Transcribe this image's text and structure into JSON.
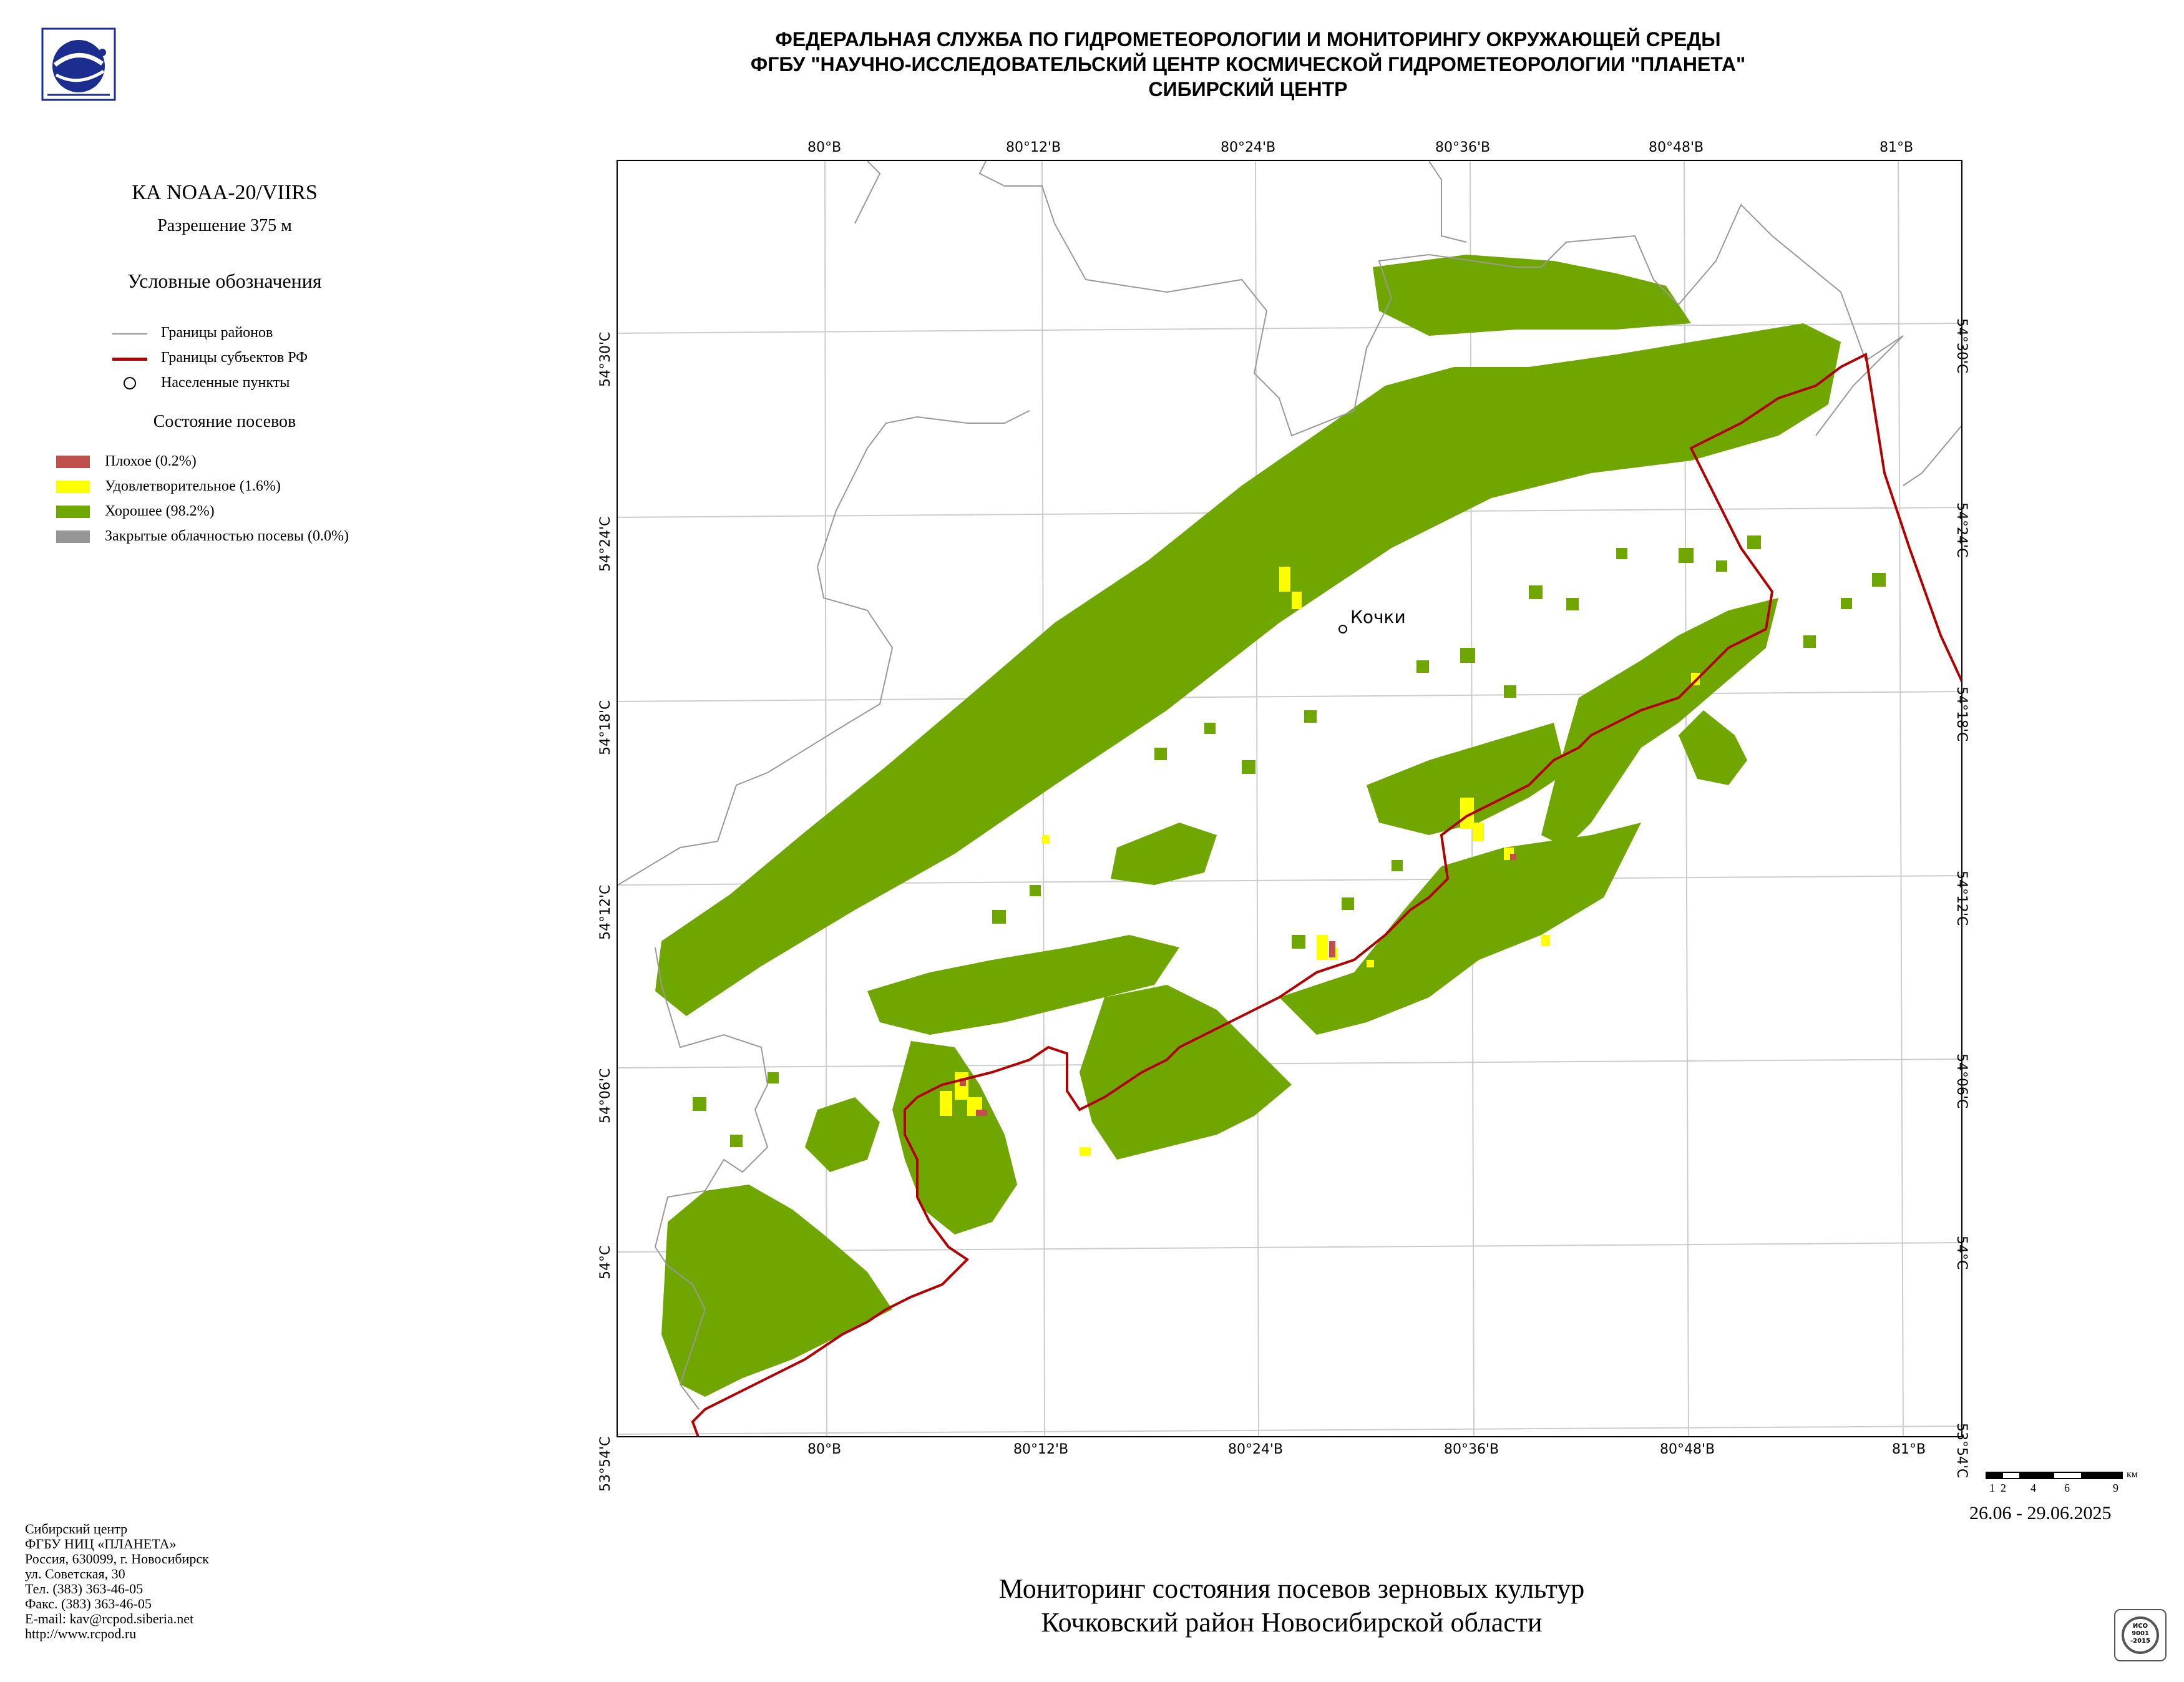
{
  "header": {
    "line1": "ФЕДЕРАЛЬНАЯ СЛУЖБА ПО ГИДРОМЕТЕОРОЛОГИИ И МОНИТОРИНГУ ОКРУЖАЮЩЕЙ СРЕДЫ",
    "line2": "ФГБУ \"НАУЧНО-ИССЛЕДОВАТЕЛЬСКИЙ ЦЕНТР КОСМИЧЕСКОЙ ГИДРОМЕТЕОРОЛОГИИ \"ПЛАНЕТА\"",
    "line3": "СИБИРСКИЙ ЦЕНТР"
  },
  "sidebar": {
    "satellite": "КА NOAA-20/VIIRS",
    "resolution": "Разрешение 375 м",
    "legend_title": "Условные обозначения",
    "legend_lines": [
      {
        "label": "Границы районов",
        "color": "#999999"
      },
      {
        "label": "Границы субъектов РФ",
        "color": "#b30000"
      },
      {
        "label": "Населенные пункты",
        "color": "#000000"
      }
    ],
    "crop_title": "Состояние посевов",
    "crop_items": [
      {
        "label": "Плохое (0.2%)",
        "color": "#c0504d"
      },
      {
        "label": "Удовлетворительное (1.6%)",
        "color": "#ffff00"
      },
      {
        "label": "Хорошее (98.2%)",
        "color": "#6fa600"
      },
      {
        "label": "Закрытые облачностью посевы (0.0%)",
        "color": "#969696"
      }
    ]
  },
  "map": {
    "top_ticks": [
      "80°В",
      "80°12'В",
      "80°24'В",
      "80°36'В",
      "80°48'В",
      "81°В"
    ],
    "bottom_ticks": [
      "80°В",
      "80°12'В",
      "80°24'В",
      "80°36'В",
      "80°48'В",
      "81°В"
    ],
    "left_ticks": [
      "54°30'С",
      "54°24'С",
      "54°18'С",
      "54°12'С",
      "54°06'С",
      "54°С",
      "53°54'С"
    ],
    "right_ticks": [
      "54°30'С",
      "54°24'С",
      "54°18'С",
      "54°12'С",
      "54°06'С",
      "54°С",
      "53°54'С"
    ],
    "settlement": "Кочки",
    "colors": {
      "good": "#6fa600",
      "satisfactory": "#ffff00",
      "poor": "#c0504d",
      "district": "#999999",
      "region": "#b30000"
    }
  },
  "scale_bar": {
    "labels": [
      "1",
      "2",
      "4",
      "6",
      "9"
    ],
    "unit": "км"
  },
  "date_range": "26.06 - 29.06.2025",
  "footer": {
    "org_lines": [
      "Сибирский центр",
      "ФГБУ НИЦ «ПЛАНЕТА»",
      "Россия, 630099, г. Новосибирск",
      "ул. Советская, 30",
      "Тел. (383) 363-46-05",
      "Факс. (383) 363-46-05",
      "E-mail: kav@rcpod.siberia.net",
      "http://www.rcpod.ru"
    ],
    "title1": "Мониторинг состояния посевов зерновых культур",
    "title2": "Кочковский район Новосибирской области"
  },
  "iso": {
    "l1": "ИСО",
    "l2": "9001",
    "l3": "-2015"
  }
}
